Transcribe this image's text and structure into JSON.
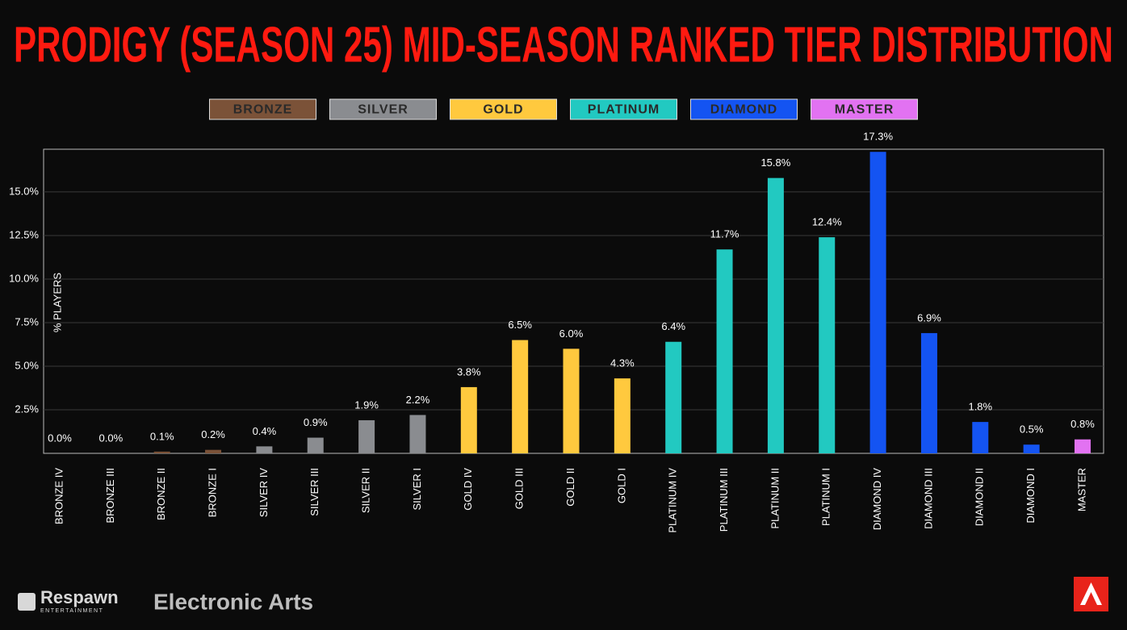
{
  "chart_data": {
    "type": "bar",
    "title": "PRODIGY (SEASON 25) MID-SEASON RANKED TIER DISTRIBUTION",
    "y_label": "% PLAYERS",
    "categories": [
      "BRONZE IV",
      "BRONZE III",
      "BRONZE II",
      "BRONZE I",
      "SILVER IV",
      "SILVER III",
      "SILVER II",
      "SILVER I",
      "GOLD IV",
      "GOLD III",
      "GOLD II",
      "GOLD I",
      "PLATINUM IV",
      "PLATINUM III",
      "PLATINUM II",
      "PLATINUM I",
      "DIAMOND IV",
      "DIAMOND III",
      "DIAMOND II",
      "DIAMOND I",
      "MASTER"
    ],
    "series": [
      {
        "name": "BRONZE",
        "color": "#7b5238",
        "values": [
          0.0,
          0.0,
          0.1,
          0.2,
          null,
          null,
          null,
          null,
          null,
          null,
          null,
          null,
          null,
          null,
          null,
          null,
          null,
          null,
          null,
          null,
          null
        ],
        "value_labels": [
          "0.0%",
          "0.0%",
          "0.1%",
          "0.2%",
          null,
          null,
          null,
          null,
          null,
          null,
          null,
          null,
          null,
          null,
          null,
          null,
          null,
          null,
          null,
          null,
          null
        ]
      },
      {
        "name": "SILVER",
        "color": "#8a8c90",
        "values": [
          null,
          null,
          null,
          null,
          0.4,
          0.9,
          1.9,
          2.2,
          null,
          null,
          null,
          null,
          null,
          null,
          null,
          null,
          null,
          null,
          null,
          null,
          null
        ],
        "value_labels": [
          null,
          null,
          null,
          null,
          "0.4%",
          "0.9%",
          "1.9%",
          "2.2%",
          null,
          null,
          null,
          null,
          null,
          null,
          null,
          null,
          null,
          null,
          null,
          null,
          null
        ]
      },
      {
        "name": "GOLD",
        "color": "#ffc93e",
        "values": [
          null,
          null,
          null,
          null,
          null,
          null,
          null,
          null,
          3.8,
          6.5,
          6.0,
          4.3,
          null,
          null,
          null,
          null,
          null,
          null,
          null,
          null,
          null
        ],
        "value_labels": [
          null,
          null,
          null,
          null,
          null,
          null,
          null,
          null,
          "3.8%",
          "6.5%",
          "6.0%",
          "4.3%",
          null,
          null,
          null,
          null,
          null,
          null,
          null,
          null,
          null
        ]
      },
      {
        "name": "PLATINUM",
        "color": "#22c9c1",
        "values": [
          null,
          null,
          null,
          null,
          null,
          null,
          null,
          null,
          null,
          null,
          null,
          null,
          6.4,
          11.7,
          15.8,
          12.4,
          null,
          null,
          null,
          null,
          null
        ],
        "value_labels": [
          null,
          null,
          null,
          null,
          null,
          null,
          null,
          null,
          null,
          null,
          null,
          null,
          "6.4%",
          "11.7%",
          "15.8%",
          "12.4%",
          null,
          null,
          null,
          null,
          null
        ]
      },
      {
        "name": "DIAMOND",
        "color": "#1454f2",
        "values": [
          null,
          null,
          null,
          null,
          null,
          null,
          null,
          null,
          null,
          null,
          null,
          null,
          null,
          null,
          null,
          null,
          17.3,
          6.9,
          1.8,
          0.5,
          null
        ],
        "value_labels": [
          null,
          null,
          null,
          null,
          null,
          null,
          null,
          null,
          null,
          null,
          null,
          null,
          null,
          null,
          null,
          null,
          "17.3%",
          "6.9%",
          "1.8%",
          "0.5%",
          null
        ]
      },
      {
        "name": "MASTER",
        "color": "#e272f2",
        "values": [
          null,
          null,
          null,
          null,
          null,
          null,
          null,
          null,
          null,
          null,
          null,
          null,
          null,
          null,
          null,
          null,
          null,
          null,
          null,
          null,
          0.8
        ],
        "value_labels": [
          null,
          null,
          null,
          null,
          null,
          null,
          null,
          null,
          null,
          null,
          null,
          null,
          null,
          null,
          null,
          null,
          null,
          null,
          null,
          null,
          "0.8%"
        ]
      }
    ],
    "ylim": [
      0,
      17.45
    ],
    "yticks": [
      {
        "value": 2.5,
        "label": "2.5%"
      },
      {
        "value": 5.0,
        "label": "5.0%"
      },
      {
        "value": 7.5,
        "label": "7.5%"
      },
      {
        "value": 10.0,
        "label": "10.0%"
      },
      {
        "value": 12.5,
        "label": "12.5%"
      },
      {
        "value": 15.0,
        "label": "15.0%"
      }
    ],
    "grid": true
  },
  "footer": {
    "publisher_1": "Respawn",
    "publisher_1_sub": "ENTERTAINMENT",
    "publisher_2": "Electronic Arts"
  }
}
